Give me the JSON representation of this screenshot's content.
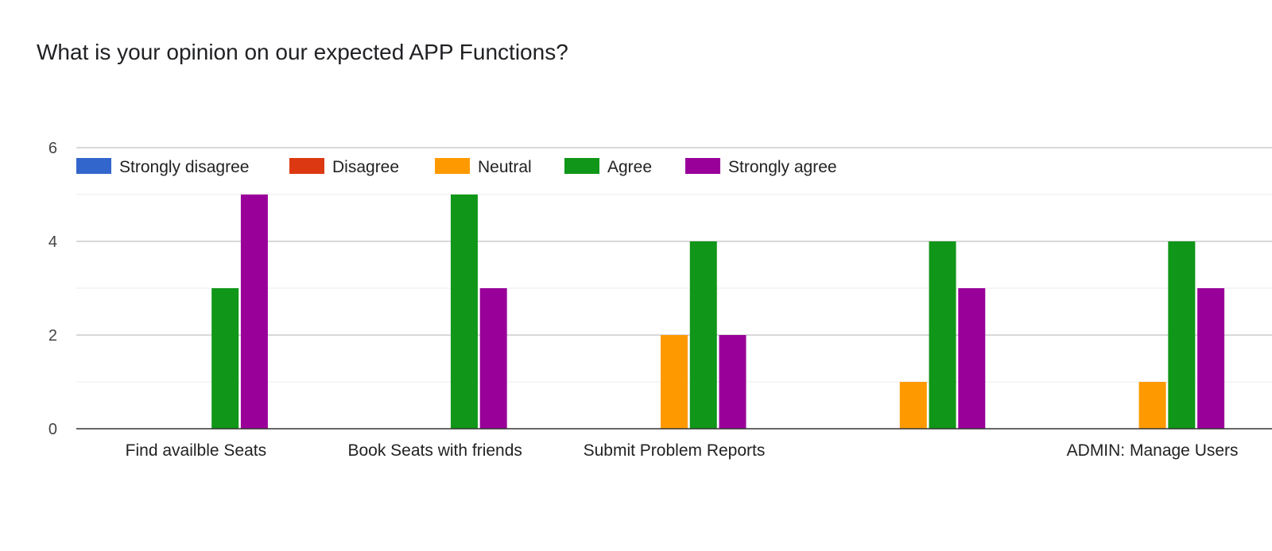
{
  "chart_data": {
    "type": "bar",
    "title": "What is your opinion on our expected APP Functions?",
    "categories": [
      "Find availble Seats",
      "Book Seats with friends",
      "Submit Problem Reports",
      "",
      "ADMIN: Manage Users"
    ],
    "series": [
      {
        "name": "Strongly disagree",
        "color": "#3366cc",
        "values": [
          0,
          0,
          0,
          0,
          0
        ]
      },
      {
        "name": "Disagree",
        "color": "#dc3912",
        "values": [
          0,
          0,
          0,
          0,
          0
        ]
      },
      {
        "name": "Neutral",
        "color": "#ff9900",
        "values": [
          0,
          0,
          2,
          1,
          1
        ]
      },
      {
        "name": "Agree",
        "color": "#109618",
        "values": [
          3,
          5,
          4,
          4,
          4
        ]
      },
      {
        "name": "Strongly agree",
        "color": "#990099",
        "values": [
          5,
          3,
          2,
          3,
          3
        ]
      }
    ],
    "ylim": [
      0,
      6
    ],
    "yticks": [
      "0",
      "2",
      "4",
      "6"
    ],
    "grid": true,
    "legend_position": "top"
  }
}
